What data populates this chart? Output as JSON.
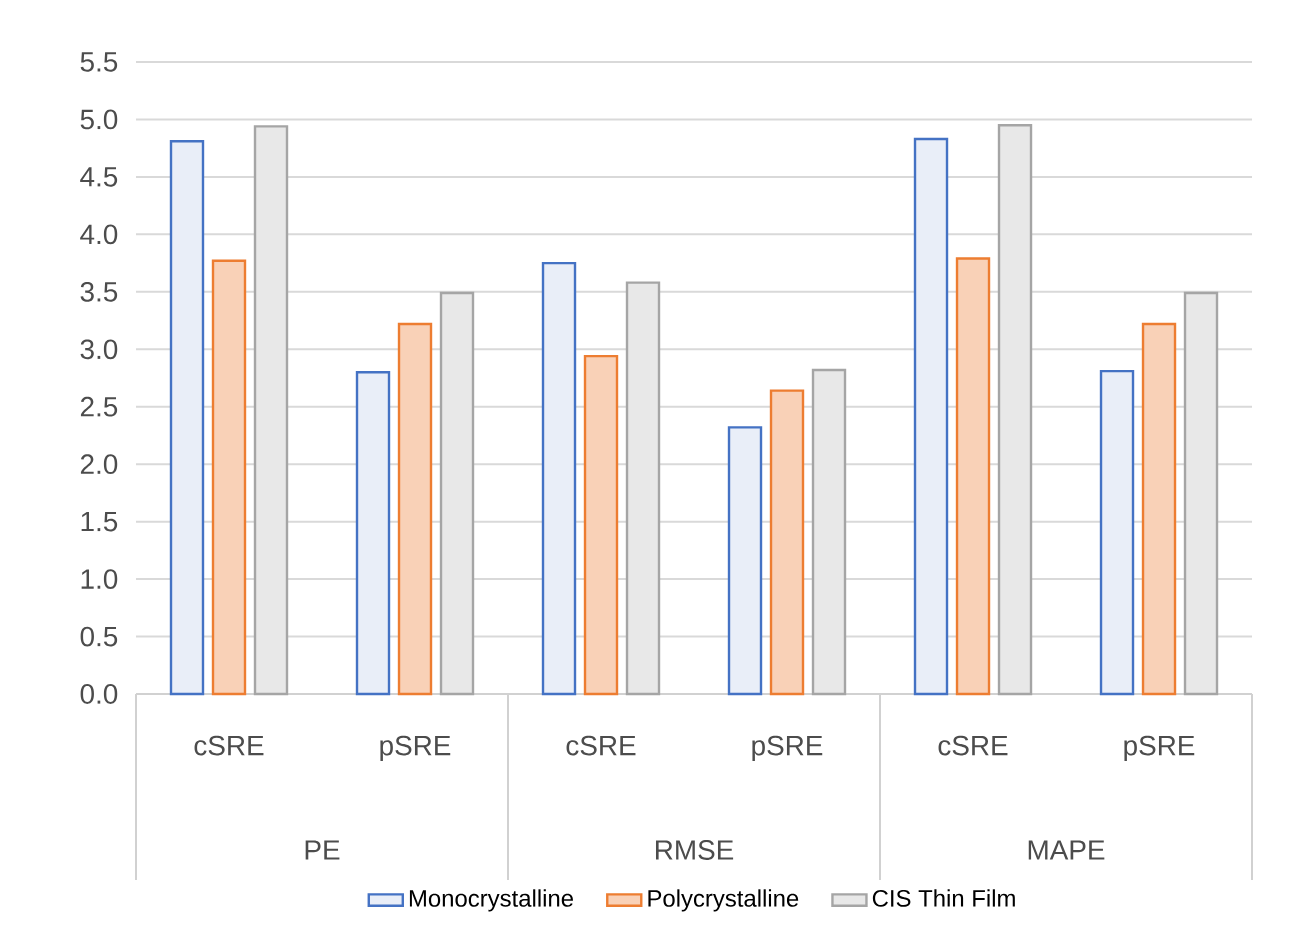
{
  "chart_data": {
    "type": "bar",
    "categories": [
      "cSRE",
      "pSRE",
      "cSRE",
      "pSRE",
      "cSRE",
      "pSRE"
    ],
    "annotations": [
      "PE",
      "RMSE",
      "MAPE"
    ],
    "series": [
      {
        "name": "Monocrystalline",
        "color": "#4472c4",
        "values": [
          4.81,
          2.8,
          3.75,
          2.32,
          4.83,
          2.81
        ]
      },
      {
        "name": "Polycrystalline",
        "color": "#ed7d31",
        "values": [
          3.77,
          3.22,
          2.94,
          2.64,
          3.79,
          3.22
        ]
      },
      {
        "name": "CIS Thin Film",
        "color": "#a5a5a5",
        "values": [
          4.94,
          3.49,
          3.58,
          2.82,
          4.95,
          3.49
        ]
      }
    ],
    "ylim": [
      0,
      5.5
    ],
    "yticks": [
      {
        "value": 0,
        "label": "0.0"
      },
      0.5,
      {
        "value": 1,
        "label": "1.0"
      },
      1.5,
      {
        "value": 2,
        "label": "2.0"
      },
      2.5,
      {
        "value": 3,
        "label": "3.0"
      },
      3.5,
      {
        "value": 4,
        "label": "4.0"
      },
      4.5,
      {
        "value": 5,
        "label": "5.0"
      },
      5.5
    ],
    "grid": "y",
    "legend": "bottom"
  }
}
